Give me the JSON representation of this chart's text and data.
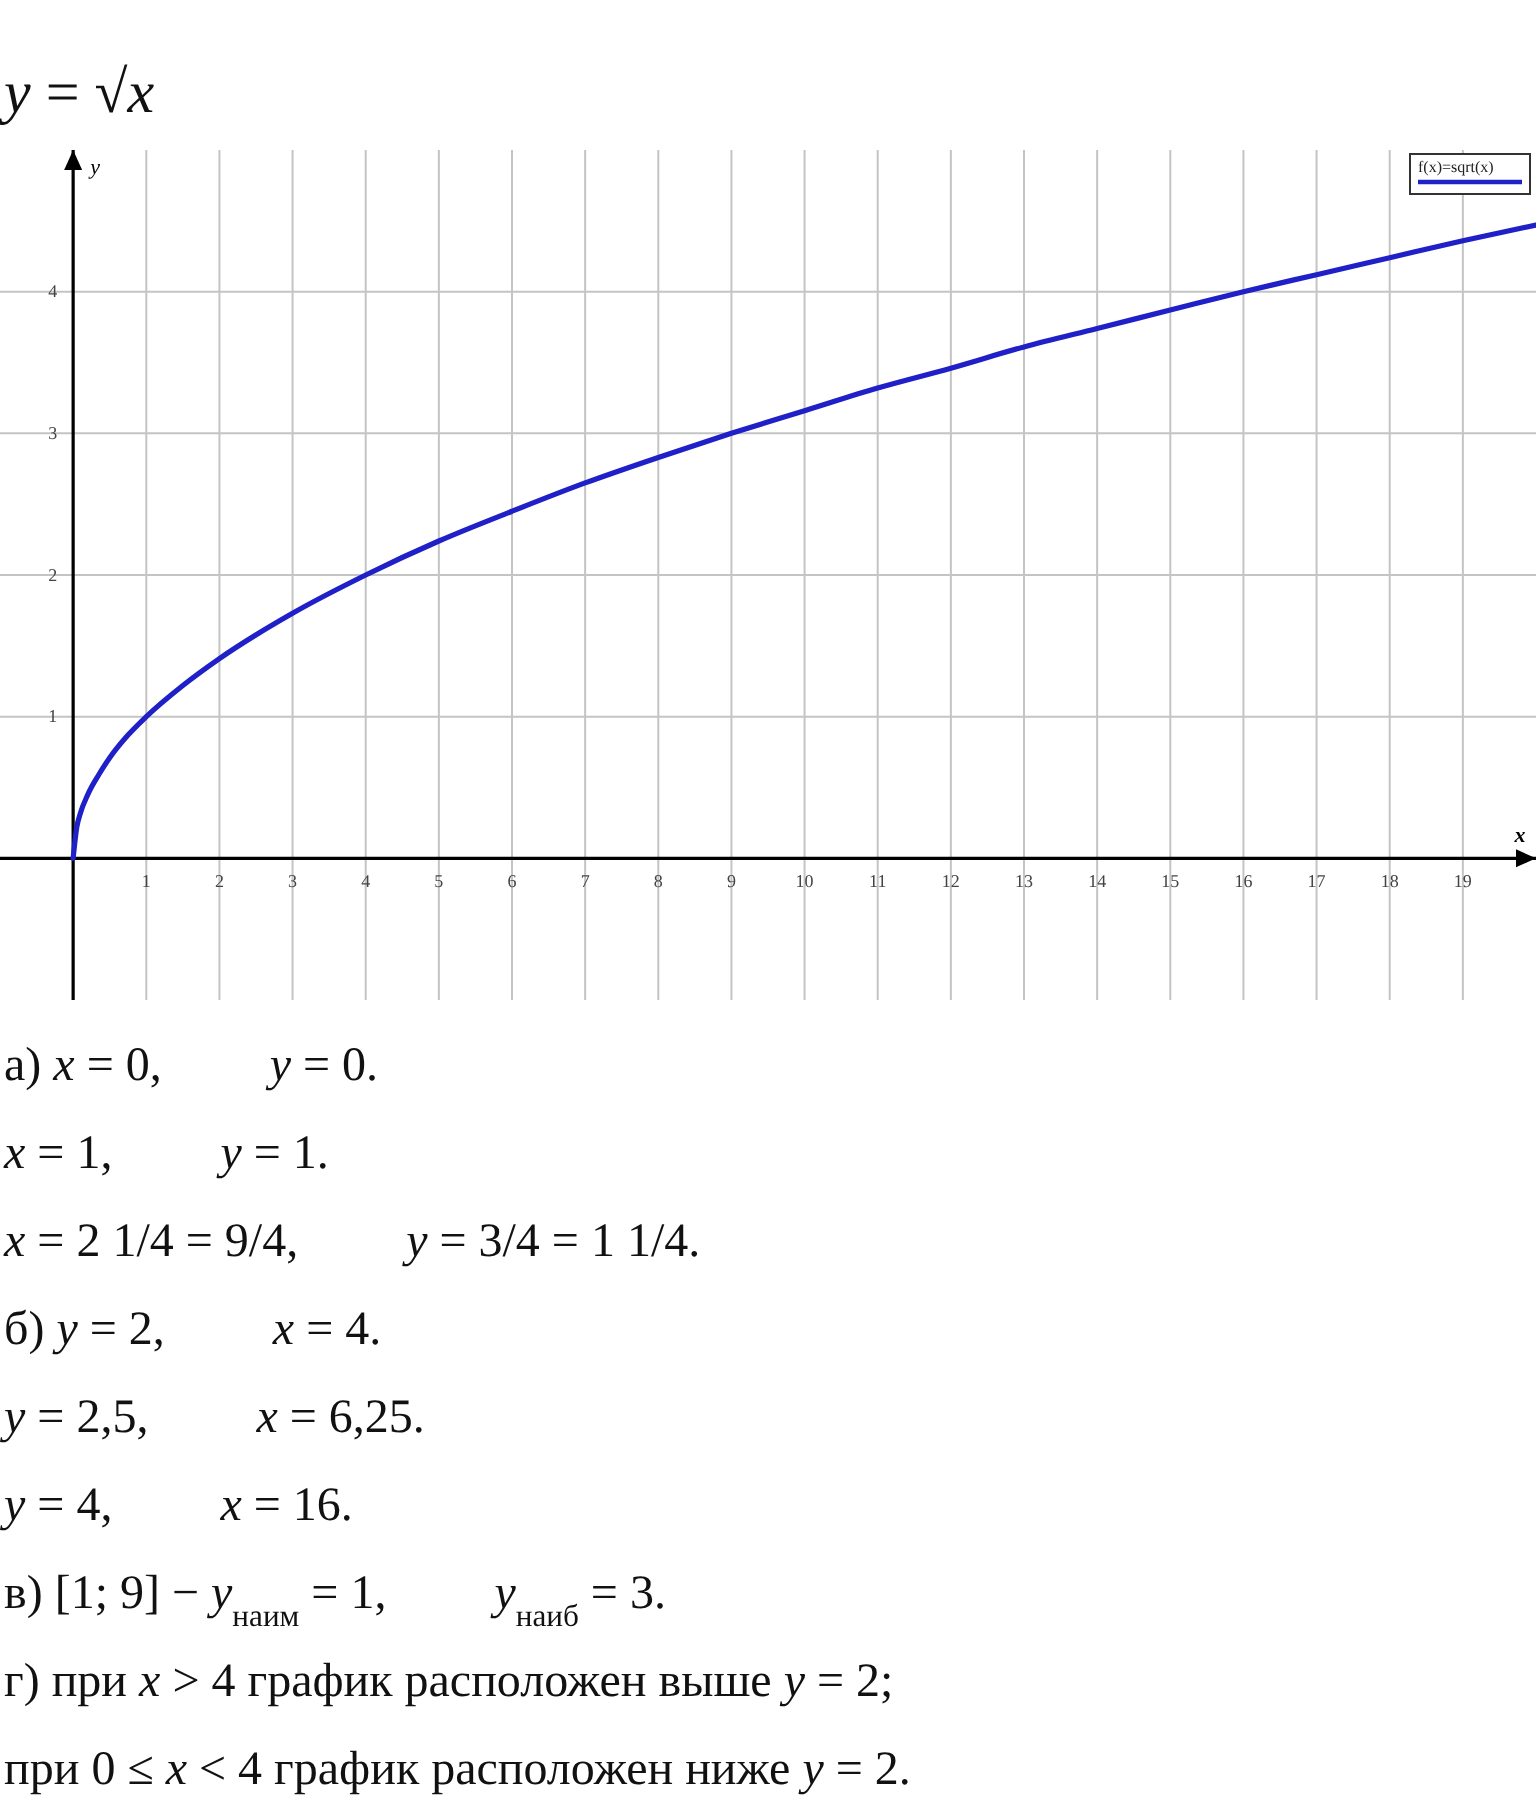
{
  "chart_data": {
    "type": "line",
    "title": "y = √x",
    "xlabel": "x",
    "ylabel": "y",
    "xlim": [
      -1,
      20
    ],
    "ylim": [
      -1,
      5
    ],
    "xticks": [
      1,
      2,
      3,
      4,
      5,
      6,
      7,
      8,
      9,
      10,
      11,
      12,
      13,
      14,
      15,
      16,
      17,
      18,
      19
    ],
    "yticks": [
      1,
      2,
      3,
      4
    ],
    "grid": true,
    "legend": "top right",
    "series": [
      {
        "name": "f(x)=sqrt(x)",
        "color": "#2020c8",
        "x": [
          0,
          0.05,
          0.1,
          0.2,
          0.35,
          0.5,
          0.75,
          1,
          1.5,
          2,
          3,
          4,
          5,
          6,
          7,
          8,
          9,
          10,
          11,
          12,
          13,
          14,
          15,
          16,
          17,
          18,
          19,
          20
        ],
        "values": [
          0,
          0.22,
          0.32,
          0.45,
          0.59,
          0.71,
          0.87,
          1,
          1.22,
          1.41,
          1.73,
          2,
          2.24,
          2.45,
          2.65,
          2.83,
          3,
          3.16,
          3.32,
          3.46,
          3.61,
          3.74,
          3.87,
          4,
          4.12,
          4.24,
          4.36,
          4.47
        ]
      }
    ],
    "annotations": [
      "а) x = 0,   y = 0.",
      "x = 1,   y = 1.",
      "x = 2 1/4 = 9/4,   y = 3/4 = 1 1/4.",
      "б) y = 2,   x = 4.",
      "y = 2,5,   x = 6,25.",
      "y = 4,   x = 16.",
      "в) [1; 9] − y$_{наим}$ = 1,   y$_{наиб}$ = 3.",
      "г) при x > 4 график расположен выше y = 2;",
      "при 0 ≤ x < 4 график расположен ниже y = 2."
    ]
  }
}
